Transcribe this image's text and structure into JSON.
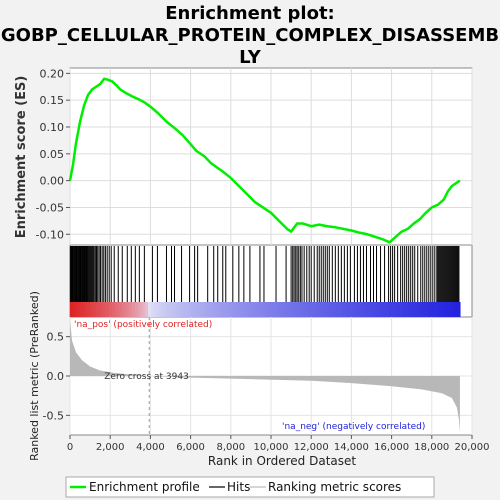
{
  "chart_data": {
    "type": "line",
    "title_lines": [
      "Enrichment plot:",
      "GOBP_CELLULAR_PROTEIN_COMPLEX_DISASSEMB",
      "LY"
    ],
    "es_panel": {
      "ylabel": "Enrichment score (ES)",
      "ylim": [
        -0.12,
        0.21
      ],
      "yticks": [
        -0.1,
        -0.05,
        0.0,
        0.05,
        0.1,
        0.15,
        0.2
      ],
      "ytick_labels": [
        "-0.10",
        "-0.05",
        "0.00",
        "0.05",
        "0.10",
        "0.15",
        "0.20"
      ],
      "series_name": "Enrichment profile",
      "color": "#00ee00",
      "x": [
        0,
        150,
        300,
        500,
        700,
        900,
        1100,
        1300,
        1500,
        1700,
        1900,
        2100,
        2300,
        2500,
        2800,
        3100,
        3400,
        3700,
        4000,
        4400,
        4800,
        5200,
        5600,
        6000,
        6300,
        6700,
        7000,
        7300,
        7600,
        8000,
        8400,
        8800,
        9200,
        9600,
        10000,
        10400,
        10800,
        11000,
        11300,
        11600,
        12000,
        12400,
        12800,
        13200,
        13600,
        14000,
        14400,
        14800,
        15200,
        15600,
        15900,
        16200,
        16500,
        16800,
        17100,
        17400,
        17700,
        18000,
        18300,
        18600,
        18800,
        19000,
        19200,
        19400
      ],
      "y": [
        0.0,
        0.03,
        0.07,
        0.11,
        0.14,
        0.16,
        0.17,
        0.175,
        0.18,
        0.19,
        0.188,
        0.185,
        0.178,
        0.17,
        0.163,
        0.157,
        0.152,
        0.146,
        0.138,
        0.125,
        0.11,
        0.098,
        0.085,
        0.068,
        0.055,
        0.045,
        0.033,
        0.025,
        0.017,
        0.005,
        -0.01,
        -0.025,
        -0.04,
        -0.05,
        -0.06,
        -0.075,
        -0.09,
        -0.095,
        -0.08,
        -0.08,
        -0.085,
        -0.082,
        -0.085,
        -0.087,
        -0.09,
        -0.093,
        -0.097,
        -0.1,
        -0.105,
        -0.11,
        -0.115,
        -0.105,
        -0.095,
        -0.09,
        -0.08,
        -0.072,
        -0.06,
        -0.05,
        -0.045,
        -0.035,
        -0.02,
        -0.01,
        -0.005,
        0.0
      ]
    },
    "hits_panel": {
      "label": "Hits",
      "hit_ranks": [
        20,
        60,
        100,
        140,
        180,
        220,
        260,
        300,
        340,
        380,
        420,
        460,
        500,
        540,
        580,
        620,
        660,
        700,
        740,
        780,
        820,
        860,
        900,
        950,
        1000,
        1050,
        1100,
        1150,
        1200,
        1260,
        1320,
        1380,
        1450,
        1520,
        1600,
        1680,
        1760,
        1850,
        1950,
        2050,
        2200,
        2400,
        2600,
        2850,
        3050,
        3250,
        3450,
        3700,
        4100,
        4350,
        4800,
        5050,
        5200,
        5550,
        5950,
        6200,
        6350,
        6850,
        7150,
        7350,
        7600,
        7750,
        8100,
        8400,
        8650,
        8950,
        9450,
        9650,
        10250,
        10750,
        11000,
        11080,
        11150,
        11230,
        11300,
        11380,
        11460,
        11540,
        11650,
        11780,
        11900,
        12000,
        12150,
        12300,
        12400,
        12500,
        12600,
        12700,
        12800,
        12900,
        13050,
        13200,
        13350,
        13500,
        13650,
        13800,
        13950,
        14150,
        14300,
        14450,
        14600,
        14750,
        14950,
        15100,
        15250,
        15450,
        15650,
        15850,
        15950,
        16050,
        16150,
        16300,
        16450,
        16550,
        16650,
        16750,
        16850,
        16950,
        17050,
        17150,
        17300,
        17450,
        17550,
        17650,
        17750,
        17850,
        17950,
        18050,
        18150,
        18250,
        18300,
        18350,
        18400,
        18450,
        18500,
        18550,
        18600,
        18650,
        18700,
        18750,
        18800,
        18850,
        18900,
        18950,
        19000,
        19050,
        19100,
        19150,
        19200,
        19250,
        19300,
        19350
      ]
    },
    "metric_panel": {
      "ylabel": "Ranked list metric (PreRanked)",
      "xlabel": "Rank in Ordered Dataset",
      "ylim": [
        -0.75,
        0.75
      ],
      "yticks": [
        -0.5,
        0.0,
        0.5
      ],
      "ytick_labels": [
        "-0.5",
        "0.0",
        "0.5"
      ],
      "xlim": [
        0,
        20000
      ],
      "xticks": [
        0,
        2000,
        4000,
        6000,
        8000,
        10000,
        12000,
        14000,
        16000,
        18000,
        20000
      ],
      "xtick_labels": [
        "0",
        "2,000",
        "4,000",
        "6,000",
        "8,000",
        "10,000",
        "12,000",
        "14,000",
        "16,000",
        "18,000",
        "20,000"
      ],
      "n_genes": 19400,
      "zero_cross": 3943,
      "zero_cross_label": "Zero cross at 3943",
      "pos_label": "'na_pos' (positively correlated)",
      "neg_label": "'na_neg' (negatively correlated)",
      "pos_color": "#dd2222",
      "neg_color": "#2222dd",
      "metric_x": [
        0,
        100,
        300,
        600,
        1000,
        1500,
        2200,
        3000,
        3943,
        6000,
        9000,
        12000,
        14000,
        16000,
        17500,
        18500,
        19000,
        19250,
        19350,
        19400
      ],
      "metric_y": [
        0.72,
        0.45,
        0.3,
        0.2,
        0.12,
        0.07,
        0.04,
        0.02,
        0.0,
        -0.02,
        -0.04,
        -0.06,
        -0.09,
        -0.13,
        -0.17,
        -0.22,
        -0.28,
        -0.4,
        -0.55,
        -0.72
      ]
    },
    "legend": {
      "items": [
        {
          "label": "Enrichment profile",
          "color": "#00ee00"
        },
        {
          "label": "Hits",
          "color": "#000000"
        },
        {
          "label": "Ranking metric scores",
          "color": "#bbbbbb"
        }
      ]
    }
  }
}
